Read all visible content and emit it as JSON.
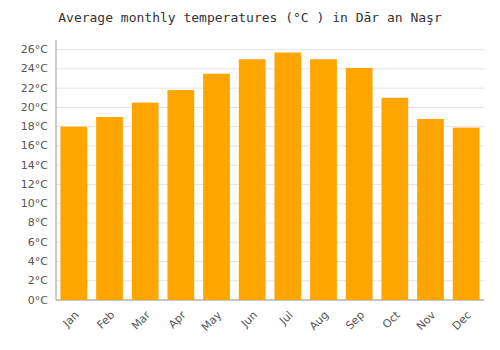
{
  "chart_data": {
    "type": "bar",
    "title": "Average monthly temperatures (°C ) in Dār an Naşr",
    "categories": [
      "Jan",
      "Feb",
      "Mar",
      "Apr",
      "May",
      "Jun",
      "Jul",
      "Aug",
      "Sep",
      "Oct",
      "Nov",
      "Dec"
    ],
    "values": [
      18,
      19,
      20.5,
      21.8,
      23.5,
      25,
      25.7,
      25,
      24.1,
      21,
      18.8,
      17.9
    ],
    "color": "#FFA500",
    "ylim": [
      0,
      27
    ],
    "yticks": [
      {
        "value": 0,
        "label": "0°C"
      },
      {
        "value": 2,
        "label": "2°C"
      },
      {
        "value": 4,
        "label": "4°C"
      },
      {
        "value": 6,
        "label": "6°C"
      },
      {
        "value": 8,
        "label": "8°C"
      },
      {
        "value": 10,
        "label": "10°C"
      },
      {
        "value": 12,
        "label": "12°C"
      },
      {
        "value": 14,
        "label": "14°C"
      },
      {
        "value": 16,
        "label": "16°C"
      },
      {
        "value": 18,
        "label": "18°C"
      },
      {
        "value": 20,
        "label": "20°C"
      },
      {
        "value": 22,
        "label": "22°C"
      },
      {
        "value": 24,
        "label": "24°C"
      },
      {
        "value": 26,
        "label": "26°C"
      }
    ],
    "grid": true
  }
}
